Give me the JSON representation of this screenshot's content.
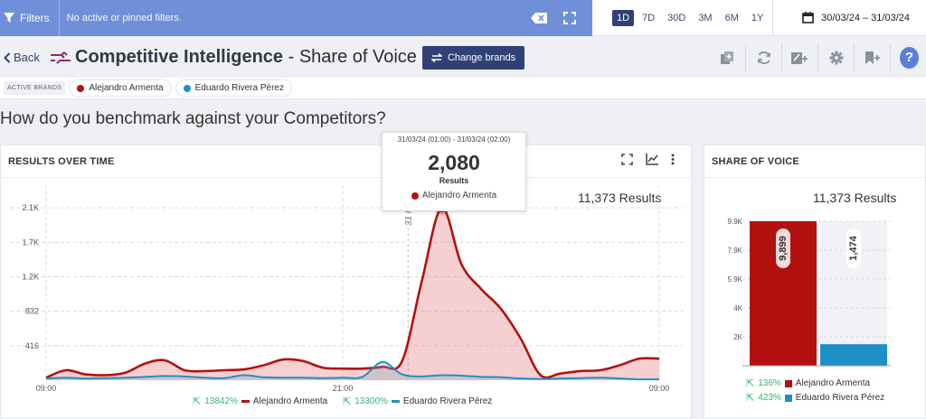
{
  "filterbar": {
    "filters_label": "Filters",
    "status_text": "No active or pinned filters."
  },
  "datebar": {
    "periods": [
      "1D",
      "7D",
      "30D",
      "3M",
      "6M",
      "1Y"
    ],
    "active_period": "1D",
    "range": "30/03/24 – 31/03/24"
  },
  "header": {
    "back_label": "Back",
    "title_bold": "Competitive Intelligence",
    "title_rest": " - Share of Voice",
    "change_brands_label": "Change brands",
    "help_label": "?"
  },
  "brands": {
    "active_label": "ACTIVE BRANDS",
    "items": [
      {
        "name": "Alejandro Armenta",
        "color": "#b3110f"
      },
      {
        "name": "Eduardo Rivera Pérez",
        "color": "#1f8fc7"
      }
    ]
  },
  "question": "How do you benchmark against your Competitors?",
  "results_over_time": {
    "title": "RESULTS OVER TIME",
    "total": "11,373 Results",
    "annotation": "31 Mar",
    "tooltip": {
      "range": "31/03/24 (01:00) - 31/03/24 (02:00)",
      "value": "2,080",
      "label": "Results",
      "brand": "Alejandro Armenta"
    },
    "legend": [
      {
        "pct": "13842%",
        "name": "Alejandro Armenta",
        "color": "#b3110f"
      },
      {
        "pct": "13300%",
        "name": "Eduardo Rivera Pérez",
        "color": "#1f8fc7"
      }
    ]
  },
  "share_of_voice": {
    "title": "SHARE OF VOICE",
    "total": "11,373 Results",
    "legend": [
      {
        "pct": "136%",
        "name": "Alejandro Armenta",
        "color": "#b3110f"
      },
      {
        "pct": "423%",
        "name": "Eduardo Rivera Pérez",
        "color": "#1f8fc7"
      }
    ]
  },
  "chart_data": [
    {
      "type": "area",
      "title": "RESULTS OVER TIME",
      "x_tick_labels": [
        "09:00",
        "21:00",
        "09:00"
      ],
      "y_tick_labels": [
        "416",
        "832",
        "1.2K",
        "1.7K",
        "2.1K"
      ],
      "y_ticks": [
        416,
        832,
        1248,
        1664,
        2080
      ],
      "ylim": [
        0,
        2300
      ],
      "x_points": 32,
      "grid": true,
      "series": [
        {
          "name": "Alejandro Armenta",
          "color": "#b3110f",
          "values": [
            30,
            120,
            70,
            60,
            90,
            200,
            240,
            120,
            110,
            120,
            130,
            180,
            250,
            230,
            150,
            140,
            140,
            160,
            230,
            1200,
            2080,
            1400,
            1100,
            860,
            500,
            60,
            80,
            110,
            120,
            180,
            260,
            260
          ]
        },
        {
          "name": "Eduardo Rivera Pérez",
          "color": "#1f8fc7",
          "values": [
            20,
            30,
            20,
            25,
            30,
            40,
            50,
            45,
            30,
            25,
            60,
            35,
            30,
            30,
            25,
            30,
            40,
            220,
            70,
            45,
            60,
            55,
            40,
            35,
            20,
            15,
            20,
            25,
            30,
            20,
            10,
            10
          ]
        }
      ]
    },
    {
      "type": "bar",
      "title": "SHARE OF VOICE",
      "categories": [
        "Alejandro Armenta",
        "Eduardo Rivera Pérez"
      ],
      "values": [
        9899,
        1474
      ],
      "value_labels": [
        "9,899",
        "1,474"
      ],
      "y_tick_labels": [
        "2K",
        "4K",
        "5.9K",
        "7.9K",
        "9.9K"
      ],
      "y_ticks": [
        1980,
        3960,
        5940,
        7920,
        9899
      ],
      "ylim": [
        0,
        9899
      ],
      "colors": [
        "#b3110f",
        "#1f8fc7"
      ]
    }
  ]
}
